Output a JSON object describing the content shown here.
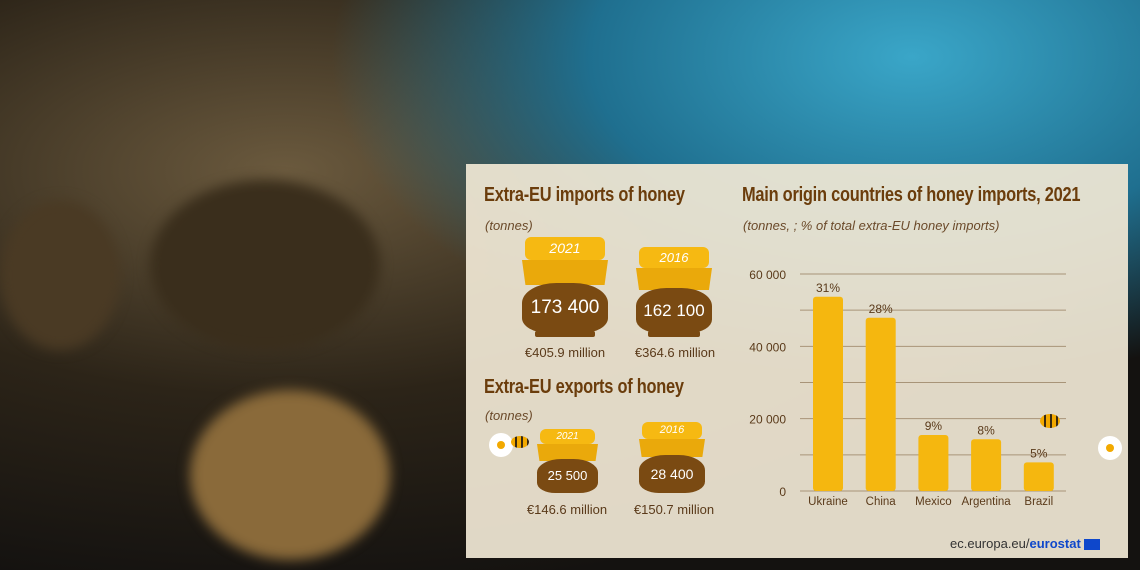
{
  "imports": {
    "title": "Extra-EU imports of honey",
    "unit": "(tonnes)",
    "jars": [
      {
        "year": "2021",
        "tonnes": "173 400",
        "value": "€405.9 million"
      },
      {
        "year": "2016",
        "tonnes": "162 100",
        "value": "€364.6 million"
      }
    ]
  },
  "exports": {
    "title": "Extra-EU exports of honey",
    "unit": "(tonnes)",
    "jars": [
      {
        "year": "2021",
        "tonnes": "25 500",
        "value": "€146.6 million"
      },
      {
        "year": "2016",
        "tonnes": "28 400",
        "value": "€150.7 million"
      }
    ]
  },
  "chart_data": {
    "type": "bar",
    "title": "Main origin countries of honey imports, 2021",
    "subtitle": "(tonnes,  ; % of total extra-EU honey imports)",
    "categories": [
      "Ukraine",
      "China",
      "Mexico",
      "Argentina",
      "Brazil"
    ],
    "values": [
      53700,
      47900,
      15500,
      14300,
      7900
    ],
    "data_labels": [
      "31%",
      "28%",
      "9%",
      "8%",
      "5%"
    ],
    "ylim": [
      0,
      60000
    ],
    "yticks": [
      0,
      20000,
      40000,
      60000
    ],
    "ytick_labels": [
      "0",
      "20 000",
      "40 000",
      "60 000"
    ],
    "grid": true,
    "bar_color": "#f5b70f"
  },
  "footer": {
    "site": "ec.europa.eu/",
    "brand": "eurostat"
  },
  "colors": {
    "title": "#6b3d0c",
    "jar_body": "#7a4a12",
    "jar_lid": "#f6b912",
    "panel": "#f0e7d4"
  }
}
